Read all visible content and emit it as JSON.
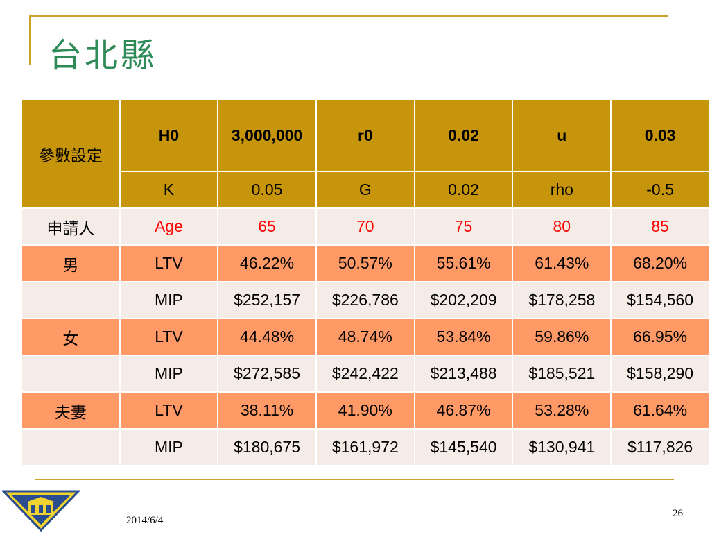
{
  "slide": {
    "title": "台北縣",
    "date": "2014/6/4",
    "page_number": "26"
  },
  "params": {
    "label": "參數設定",
    "row1": [
      "H0",
      "3,000,000",
      "r0",
      "0.02",
      "u",
      "0.03"
    ],
    "row2": [
      "K",
      "0.05",
      "G",
      "0.02",
      "rho",
      "-0.5"
    ]
  },
  "applicant": {
    "label": "申請人",
    "age_label": "Age",
    "ages": [
      "65",
      "70",
      "75",
      "80",
      "85"
    ]
  },
  "groups": [
    {
      "label": "男",
      "ltv_label": "LTV",
      "ltv": [
        "46.22%",
        "50.57%",
        "55.61%",
        "61.43%",
        "68.20%"
      ],
      "mip_label": "MIP",
      "mip": [
        "$252,157",
        "$226,786",
        "$202,209",
        "$178,258",
        "$154,560"
      ]
    },
    {
      "label": "女",
      "ltv_label": "LTV",
      "ltv": [
        "44.48%",
        "48.74%",
        "53.84%",
        "59.86%",
        "66.95%"
      ],
      "mip_label": "MIP",
      "mip": [
        "$272,585",
        "$242,422",
        "$213,488",
        "$185,521",
        "$158,290"
      ]
    },
    {
      "label": "夫妻",
      "ltv_label": "LTV",
      "ltv": [
        "38.11%",
        "41.90%",
        "46.87%",
        "53.28%",
        "61.64%"
      ],
      "mip_label": "MIP",
      "mip": [
        "$180,675",
        "$161,972",
        "$145,540",
        "$130,941",
        "$117,826"
      ]
    }
  ],
  "colors": {
    "header_gold": "#c7950b",
    "row_cream": "#f5ece8",
    "row_salmon": "#ff9966",
    "title_green": "#2e8b57",
    "accent_line": "#c9a227",
    "age_red": "#ff0000"
  },
  "icons": {
    "logo": "university-emblem-icon"
  }
}
